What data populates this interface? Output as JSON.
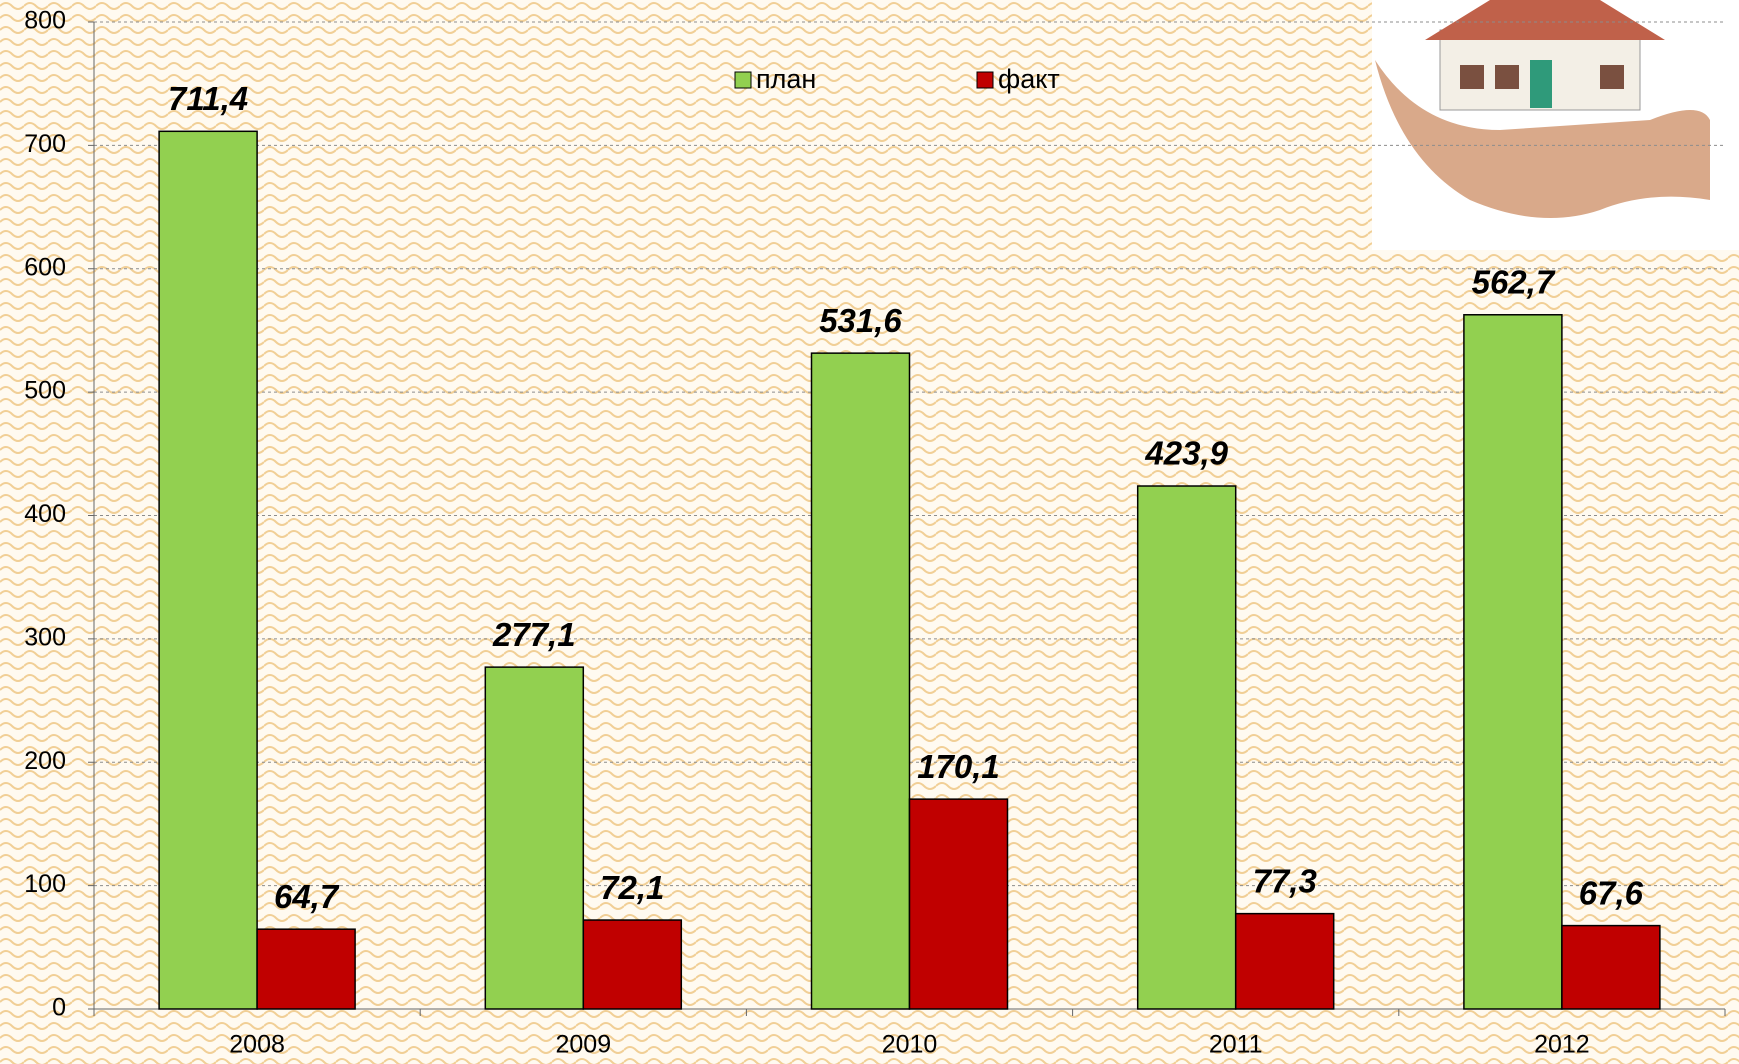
{
  "chart_data": {
    "type": "bar",
    "categories": [
      "2008",
      "2009",
      "2010",
      "2011",
      "2012"
    ],
    "series": [
      {
        "name": "план",
        "color": "#92d050",
        "values": [
          711.4,
          277.1,
          531.6,
          423.9,
          562.7
        ],
        "value_labels": [
          "711,4",
          "277,1",
          "531,6",
          "423,9",
          "562,7"
        ]
      },
      {
        "name": "факт",
        "color": "#c00000",
        "values": [
          64.7,
          72.1,
          170.1,
          77.3,
          67.6
        ],
        "value_labels": [
          "64,7",
          "72,1",
          "170,1",
          "77,3",
          "67,6"
        ]
      }
    ],
    "ylim": [
      0,
      800
    ],
    "yticks": [
      0,
      100,
      200,
      300,
      400,
      500,
      600,
      700,
      800
    ],
    "grid": true,
    "legend": "top"
  }
}
